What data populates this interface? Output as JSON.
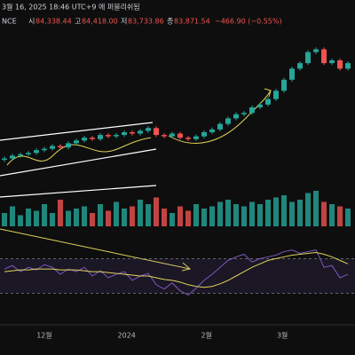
{
  "header": {
    "line1": "3월 16, 2025 18:46 UTC+9 에 퍼블리쉬됨",
    "symbol": "NCE",
    "o_label": "시",
    "o": "84,338.44",
    "h_label": "고",
    "h": "84,418.00",
    "l_label": "저",
    "l": "83,733.86",
    "c_label": "종",
    "c": "83,871.54",
    "change": "−466.90 (−0.55%)"
  },
  "chart_data": {
    "type": "candlestick",
    "open": [
      33,
      33.5,
      34.5,
      35,
      35.5,
      36.5,
      37,
      38,
      37.5,
      39,
      40,
      41,
      40.5,
      42,
      41.5,
      42,
      43,
      42.5,
      43.5,
      44.5,
      42,
      41.5,
      42.5,
      41,
      40.5,
      41.5,
      43,
      44,
      46,
      48,
      49.5,
      50,
      52,
      53,
      55,
      58,
      62,
      66,
      68,
      72,
      73,
      68,
      69,
      66
    ],
    "high": [
      34.2,
      35.2,
      35.7,
      36.2,
      37.2,
      37.7,
      38.7,
      38.7,
      39.7,
      40.7,
      41.7,
      41.7,
      42.7,
      42.7,
      42.7,
      43.7,
      43.7,
      44.2,
      45.2,
      45.2,
      42.7,
      43.2,
      43.2,
      41.7,
      42.2,
      43.7,
      44.7,
      46.7,
      48.7,
      50.2,
      50.7,
      52.7,
      53.7,
      55.7,
      58.7,
      62.7,
      66.7,
      68.7,
      72.7,
      73.7,
      73.7,
      69.7,
      69.7,
      68.7
    ],
    "low": [
      32.3,
      32.8,
      33.8,
      34.3,
      34.8,
      35.8,
      36.3,
      36.8,
      36.8,
      38.3,
      39.3,
      39.8,
      39.8,
      40.8,
      40.8,
      41.3,
      41.8,
      41.8,
      42.8,
      41.3,
      40.8,
      40.8,
      40.3,
      39.8,
      39.8,
      40.8,
      42.3,
      43.3,
      45.3,
      47.3,
      48.8,
      49.3,
      51.3,
      52.3,
      54.3,
      57.3,
      61.3,
      65.3,
      67.3,
      71.3,
      67.3,
      67.3,
      65.3,
      65.3
    ],
    "close": [
      33.5,
      34.5,
      35,
      35.5,
      36.5,
      37,
      38,
      37.5,
      39,
      40,
      41,
      40.5,
      42,
      41.5,
      42,
      43,
      42.5,
      43.5,
      44.5,
      42,
      41.5,
      42.5,
      41,
      40.5,
      41.5,
      43,
      44,
      46,
      48,
      49.5,
      50,
      52,
      53,
      55,
      58,
      62,
      66,
      68,
      72,
      73,
      68,
      69,
      66,
      68
    ],
    "ylim": [
      25,
      78
    ],
    "up_color": "#26a69a",
    "down_color": "#ef5350",
    "volume": [
      30,
      45,
      25,
      40,
      35,
      50,
      30,
      60,
      35,
      40,
      45,
      30,
      50,
      35,
      55,
      40,
      45,
      60,
      50,
      65,
      40,
      30,
      45,
      35,
      50,
      40,
      45,
      55,
      60,
      50,
      45,
      55,
      50,
      60,
      65,
      70,
      55,
      60,
      75,
      80,
      55,
      50,
      45,
      40
    ],
    "volume_ylim": [
      0,
      100
    ],
    "rsi": [
      58,
      62,
      55,
      60,
      57,
      63,
      60,
      52,
      58,
      55,
      60,
      50,
      56,
      48,
      52,
      55,
      45,
      50,
      53,
      40,
      35,
      42,
      33,
      28,
      36,
      45,
      52,
      60,
      68,
      72,
      75,
      66,
      70,
      72,
      74,
      78,
      80,
      76,
      78,
      80,
      60,
      62,
      48,
      52
    ],
    "rsi_ma": [
      55,
      56,
      57,
      57,
      58,
      58,
      58,
      57,
      57,
      57,
      56,
      55,
      55,
      54,
      53,
      52,
      51,
      50,
      50,
      48,
      46,
      45,
      43,
      40,
      38,
      37,
      38,
      41,
      45,
      50,
      55,
      60,
      64,
      68,
      70,
      72,
      74,
      75,
      76,
      77,
      75,
      72,
      68,
      64
    ],
    "rsi_ylim": [
      0,
      100
    ],
    "rsi_bands": [
      70,
      30
    ],
    "rsi_color": "#7e57c2",
    "rsi_ma_color": "#e0d25a",
    "xticks": [
      {
        "value": 5,
        "label": "12월"
      },
      {
        "value": 15.3,
        "label": "2024"
      },
      {
        "value": 25.3,
        "label": "2월"
      },
      {
        "value": 34.8,
        "label": "3월"
      }
    ]
  }
}
